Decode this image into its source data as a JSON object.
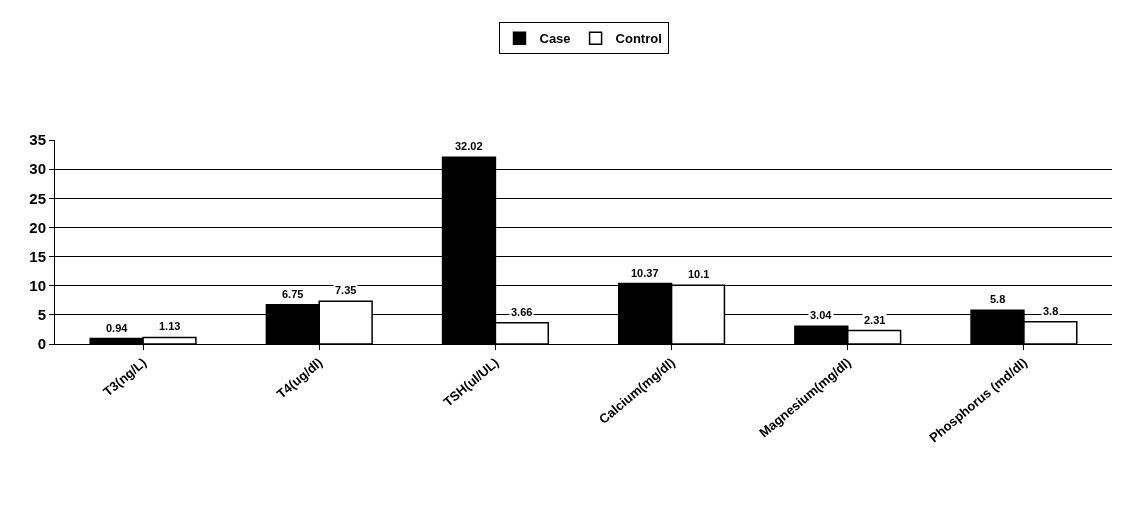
{
  "chart_data": {
    "type": "bar",
    "categories": [
      "T3(ng/L)",
      "T4(ug/dl)",
      "TSH(ul/UL)",
      "Calcium(mg/dl)",
      "Magnesium(mg/dl)",
      "Phosphorus (md/dl)"
    ],
    "series": [
      {
        "name": "Case",
        "color": "#000000",
        "values": [
          0.94,
          6.75,
          32.02,
          10.37,
          3.04,
          5.8
        ]
      },
      {
        "name": "Control",
        "color": "#ffffff",
        "values": [
          1.13,
          7.35,
          3.66,
          10.1,
          2.31,
          3.8
        ]
      }
    ],
    "ylim": [
      0,
      35
    ],
    "yticks": [
      0,
      5,
      10,
      15,
      20,
      25,
      30,
      35
    ],
    "grid": "y",
    "legend": "top",
    "data_labels": true
  }
}
